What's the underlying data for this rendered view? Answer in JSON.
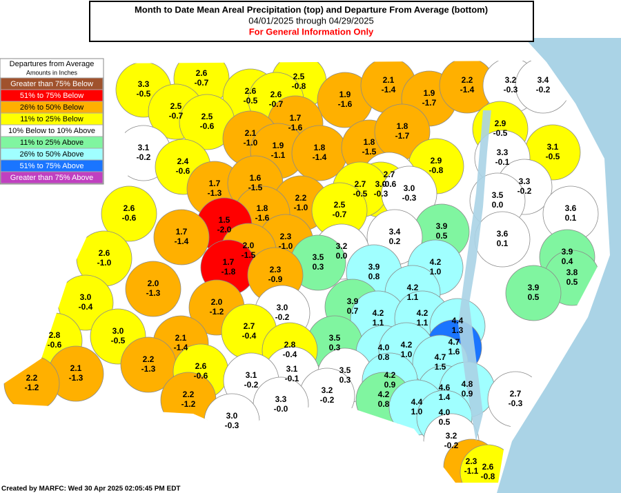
{
  "header": {
    "title": "Month to Date Mean Areal Precipitation (top) and Departure From Average (bottom)",
    "dates": "04/01/2025 through 04/29/2025",
    "note": "For General Information Only"
  },
  "legend": {
    "title": "Departures from Average",
    "subtitle": "Amounts in Inches",
    "items": [
      {
        "label": "Greater than 75% Below",
        "color": "#a0522d"
      },
      {
        "label": "51% to 75% Below",
        "color": "#ff0000"
      },
      {
        "label": "26% to 50% Below",
        "color": "#ffb000"
      },
      {
        "label": "11% to 25% Below",
        "color": "#ffff00"
      },
      {
        "label": "10% Below to 10% Above",
        "color": "#ffffff"
      },
      {
        "label": "11% to 25% Above",
        "color": "#80f5a0"
      },
      {
        "label": "26% to 50% Above",
        "color": "#a0ffff"
      },
      {
        "label": "51% to 75% Above",
        "color": "#1a75ff"
      },
      {
        "label": "Greater than 75% Above",
        "color": "#c040c0"
      }
    ]
  },
  "regions": [
    {
      "precip": "3.3",
      "departure": "-0.5",
      "color": "#ffff00"
    },
    {
      "precip": "2.6",
      "departure": "-0.7",
      "color": "#ffff00"
    },
    {
      "precip": "2.5",
      "departure": "-0.8",
      "color": "#ffff00"
    },
    {
      "precip": "2.5",
      "departure": "-0.7",
      "color": "#ffff00"
    },
    {
      "precip": "2.6",
      "departure": "-0.5",
      "color": "#ffff00"
    },
    {
      "precip": "2.6",
      "departure": "-0.7",
      "color": "#ffff00"
    },
    {
      "precip": "1.9",
      "departure": "-1.6",
      "color": "#ffb000"
    },
    {
      "precip": "2.1",
      "departure": "-1.4",
      "color": "#ffb000"
    },
    {
      "precip": "1.9",
      "departure": "-1.7",
      "color": "#ffb000"
    },
    {
      "precip": "2.2",
      "departure": "-1.4",
      "color": "#ffb000"
    },
    {
      "precip": "3.2",
      "departure": "-0.3",
      "color": "#ffffff"
    },
    {
      "precip": "3.4",
      "departure": "-0.2",
      "color": "#ffffff"
    },
    {
      "precip": "2.5",
      "departure": "-0.6",
      "color": "#ffff00"
    },
    {
      "precip": "1.7",
      "departure": "-1.6",
      "color": "#ffb000"
    },
    {
      "precip": "2.1",
      "departure": "-1.0",
      "color": "#ffb000"
    },
    {
      "precip": "1.9",
      "departure": "-1.1",
      "color": "#ffb000"
    },
    {
      "precip": "1.8",
      "departure": "-1.4",
      "color": "#ffb000"
    },
    {
      "precip": "1.8",
      "departure": "-1.5",
      "color": "#ffb000"
    },
    {
      "precip": "1.8",
      "departure": "-1.7",
      "color": "#ffb000"
    },
    {
      "precip": "2.9",
      "departure": "-0.5",
      "color": "#ffff00"
    },
    {
      "precip": "3.1",
      "departure": "-0.2",
      "color": "#ffffff"
    },
    {
      "precip": "2.4",
      "departure": "-0.6",
      "color": "#ffff00"
    },
    {
      "precip": "3.1",
      "departure": "-0.5",
      "color": "#ffff00"
    },
    {
      "precip": "3.3",
      "departure": "-0.1",
      "color": "#ffffff"
    },
    {
      "precip": "2.9",
      "departure": "-0.8",
      "color": "#ffff00"
    },
    {
      "precip": "1.7",
      "departure": "-1.3",
      "color": "#ffb000"
    },
    {
      "precip": "1.6",
      "departure": "-1.5",
      "color": "#ffb000"
    },
    {
      "precip": "2.7",
      "departure": "-0.6",
      "color": "#ffffff"
    },
    {
      "precip": "3.0",
      "departure": "-0.3",
      "color": "#ffff00"
    },
    {
      "precip": "2.7",
      "departure": "-0.5",
      "color": "#ffff00"
    },
    {
      "precip": "3.0",
      "departure": "-0.3",
      "color": "#ffffff"
    },
    {
      "precip": "3.3",
      "departure": "-0.2",
      "color": "#ffffff"
    },
    {
      "precip": "2.2",
      "departure": "-1.0",
      "color": "#ffb000"
    },
    {
      "precip": "1.8",
      "departure": "-1.6",
      "color": "#ffb000"
    },
    {
      "precip": "2.5",
      "departure": "-0.7",
      "color": "#ffff00"
    },
    {
      "precip": "3.5",
      "departure": "0.0",
      "color": "#ffffff"
    },
    {
      "precip": "3.6",
      "departure": "0.1",
      "color": "#ffffff"
    },
    {
      "precip": "2.6",
      "departure": "-0.6",
      "color": "#ffff00"
    },
    {
      "precip": "1.5",
      "departure": "-2.0",
      "color": "#ff0000"
    },
    {
      "precip": "1.7",
      "departure": "-1.4",
      "color": "#ffb000"
    },
    {
      "precip": "3.9",
      "departure": "0.5",
      "color": "#80f5a0"
    },
    {
      "precip": "3.4",
      "departure": "0.2",
      "color": "#ffffff"
    },
    {
      "precip": "3.6",
      "departure": "0.1",
      "color": "#ffffff"
    },
    {
      "precip": "2.3",
      "departure": "-1.0",
      "color": "#ffb000"
    },
    {
      "precip": "2.0",
      "departure": "-1.5",
      "color": "#ffb000"
    },
    {
      "precip": "3.2",
      "departure": "0.0",
      "color": "#ffffff"
    },
    {
      "precip": "2.6",
      "departure": "-1.0",
      "color": "#ffff00"
    },
    {
      "precip": "3.9",
      "departure": "0.4",
      "color": "#80f5a0"
    },
    {
      "precip": "3.9",
      "departure": "0.8",
      "color": "#a0ffff"
    },
    {
      "precip": "4.2",
      "departure": "1.0",
      "color": "#a0ffff"
    },
    {
      "precip": "1.7",
      "departure": "-1.8",
      "color": "#ff0000"
    },
    {
      "precip": "3.5",
      "departure": "0.3",
      "color": "#80f5a0"
    },
    {
      "precip": "3.8",
      "departure": "0.5",
      "color": "#80f5a0"
    },
    {
      "precip": "2.3",
      "departure": "-0.9",
      "color": "#ffb000"
    },
    {
      "precip": "2.0",
      "departure": "-1.3",
      "color": "#ffb000"
    },
    {
      "precip": "4.2",
      "departure": "1.1",
      "color": "#a0ffff"
    },
    {
      "precip": "3.9",
      "departure": "0.5",
      "color": "#80f5a0"
    },
    {
      "precip": "3.0",
      "departure": "-0.4",
      "color": "#ffff00"
    },
    {
      "precip": "2.0",
      "departure": "-1.2",
      "color": "#ffb000"
    },
    {
      "precip": "3.9",
      "departure": "0.7",
      "color": "#80f5a0"
    },
    {
      "precip": "3.0",
      "departure": "-0.2",
      "color": "#ffffff"
    },
    {
      "precip": "4.2",
      "departure": "1.1",
      "color": "#a0ffff"
    },
    {
      "precip": "4.2",
      "departure": "1.1",
      "color": "#a0ffff"
    },
    {
      "precip": "4.4",
      "departure": "1.3",
      "color": "#a0ffff"
    },
    {
      "precip": "2.7",
      "departure": "-0.4",
      "color": "#ffff00"
    },
    {
      "precip": "3.0",
      "departure": "-0.5",
      "color": "#ffff00"
    },
    {
      "precip": "2.8",
      "departure": "-0.6",
      "color": "#ffff00"
    },
    {
      "precip": "2.1",
      "departure": "-1.4",
      "color": "#ffb000"
    },
    {
      "precip": "3.5",
      "departure": "0.3",
      "color": "#80f5a0"
    },
    {
      "precip": "4.7",
      "departure": "1.6",
      "color": "#1a75ff"
    },
    {
      "precip": "2.8",
      "departure": "-0.4",
      "color": "#ffff00"
    },
    {
      "precip": "4.0",
      "departure": "0.8",
      "color": "#a0ffff"
    },
    {
      "precip": "4.2",
      "departure": "1.0",
      "color": "#a0ffff"
    },
    {
      "precip": "4.7",
      "departure": "1.5",
      "color": "#a0ffff"
    },
    {
      "precip": "2.2",
      "departure": "-1.3",
      "color": "#ffb000"
    },
    {
      "precip": "2.1",
      "departure": "-1.3",
      "color": "#ffb000"
    },
    {
      "precip": "2.6",
      "departure": "-0.6",
      "color": "#ffff00"
    },
    {
      "precip": "3.1",
      "departure": "-0.1",
      "color": "#ffffff"
    },
    {
      "precip": "3.5",
      "departure": "0.3",
      "color": "#ffffff"
    },
    {
      "precip": "3.1",
      "departure": "-0.2",
      "color": "#ffffff"
    },
    {
      "precip": "4.2",
      "departure": "0.9",
      "color": "#a0ffff"
    },
    {
      "precip": "4.6",
      "departure": "1.4",
      "color": "#a0ffff"
    },
    {
      "precip": "4.8",
      "departure": "0.9",
      "color": "#a0ffff"
    },
    {
      "precip": "2.2",
      "departure": "-1.2",
      "color": "#ffb000"
    },
    {
      "precip": "3.2",
      "departure": "-0.2",
      "color": "#ffffff"
    },
    {
      "precip": "2.7",
      "departure": "-0.3",
      "color": "#ffffff"
    },
    {
      "precip": "4.2",
      "departure": "0.8",
      "color": "#80f5a0"
    },
    {
      "precip": "3.3",
      "departure": "-0.0",
      "color": "#ffffff"
    },
    {
      "precip": "4.4",
      "departure": "1.0",
      "color": "#a0ffff"
    },
    {
      "precip": "2.2",
      "departure": "-1.2",
      "color": "#ffb000"
    },
    {
      "precip": "4.0",
      "departure": "0.5",
      "color": "#a0ffff"
    },
    {
      "precip": "3.0",
      "departure": "-0.3",
      "color": "#ffffff"
    },
    {
      "precip": "3.2",
      "departure": "-0.2",
      "color": "#ffffff"
    },
    {
      "precip": "2.3",
      "departure": "-1.1",
      "color": "#ffb000"
    },
    {
      "precip": "2.6",
      "departure": "-0.8",
      "color": "#ffff00"
    }
  ],
  "footer": "Created by MARFC: Wed 30 Apr 2025 02:05:45 PM EDT"
}
